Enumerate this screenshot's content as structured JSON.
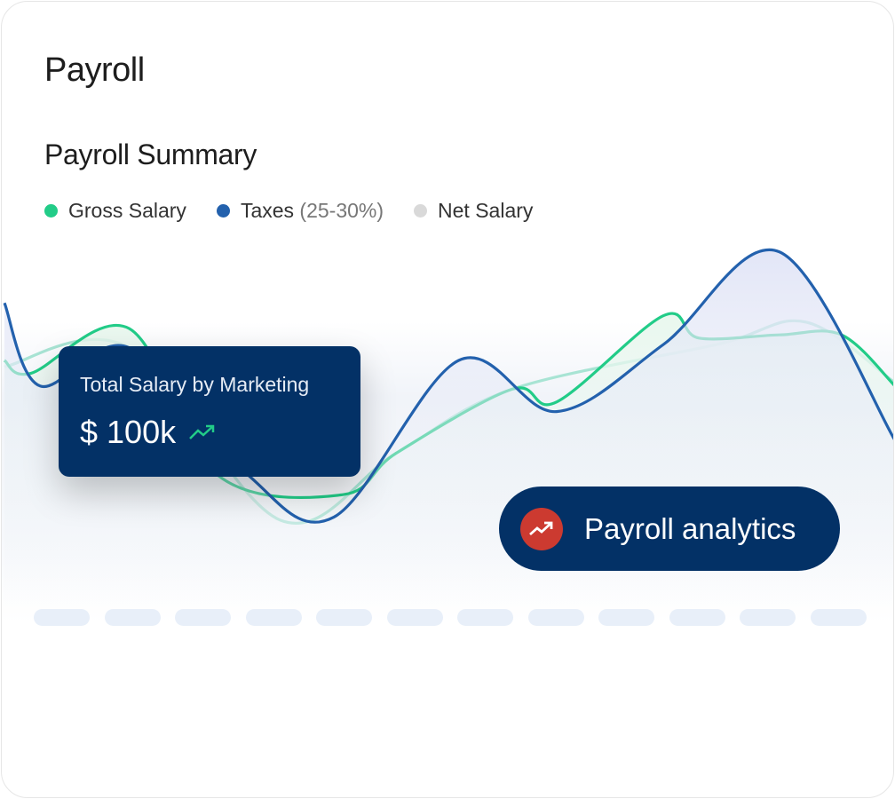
{
  "header": {
    "title": "Payroll"
  },
  "summary": {
    "title": "Payroll Summary"
  },
  "legend": [
    {
      "label": "Gross Salary",
      "suffix": "",
      "color": "#22cc88"
    },
    {
      "label": "Taxes",
      "suffix": "(25-30%)",
      "color": "#2361ad"
    },
    {
      "label": "Net Salary",
      "suffix": "",
      "color": "#d9d9d9"
    }
  ],
  "tooltip": {
    "label": "Total Salary by Marketing",
    "value": "$ 100k",
    "icon": "trending-up-icon"
  },
  "analytics_button": {
    "label": "Payroll analytics",
    "icon": "trending-up-icon",
    "icon_bg": "#cc3a30"
  },
  "colors": {
    "navy": "#033166",
    "gross": "#22cc88",
    "taxes": "#2361ad",
    "net": "#a8e4d4"
  },
  "chart_data": {
    "type": "line",
    "axes_visible": false,
    "grid": false,
    "legend_placement": "top-left",
    "series": [
      {
        "name": "Gross Salary",
        "x": [
          0,
          3,
          14,
          24,
          38,
          44,
          57,
          62,
          74,
          78,
          87,
          94,
          100
        ],
        "values": [
          60,
          56,
          70,
          24,
          18,
          31,
          51,
          47,
          74,
          67,
          68,
          68,
          52
        ]
      },
      {
        "name": "Taxes",
        "x": [
          0,
          4,
          14,
          27,
          37,
          51,
          62,
          74,
          87,
          100
        ],
        "values": [
          78,
          52,
          64,
          25,
          11,
          60,
          44,
          65,
          94,
          35
        ]
      },
      {
        "name": "Net Salary",
        "x": [
          0,
          14,
          31,
          44,
          57,
          80,
          90,
          100
        ],
        "values": [
          58,
          64,
          10,
          31,
          51,
          65,
          72,
          53
        ]
      }
    ]
  },
  "x_ticks_count": 12
}
